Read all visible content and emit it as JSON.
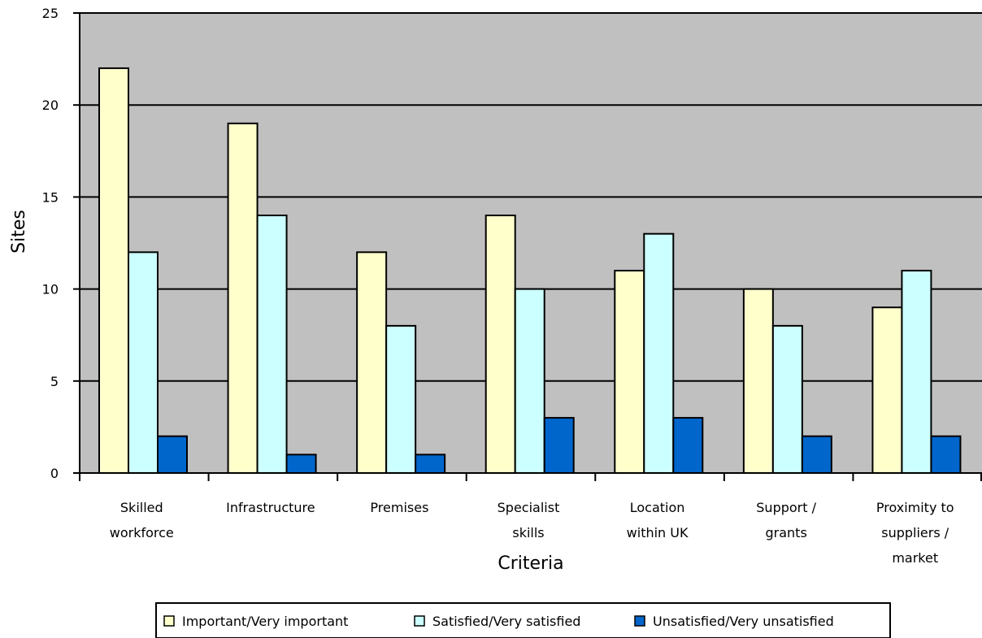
{
  "chart_data": {
    "type": "bar",
    "xlabel": "Criteria",
    "ylabel": "Sites",
    "ylim": [
      0,
      25
    ],
    "yticks": [
      0,
      5,
      10,
      15,
      20,
      25
    ],
    "grid": true,
    "legend_position": "bottom",
    "categories": [
      [
        "Skilled",
        "workforce"
      ],
      [
        "Infrastructure"
      ],
      [
        "Premises"
      ],
      [
        "Specialist",
        "skills"
      ],
      [
        "Location",
        "within UK"
      ],
      [
        "Support /",
        "grants"
      ],
      [
        "Proximity to",
        "suppliers /",
        "market"
      ]
    ],
    "series": [
      {
        "name": "Important/Very important",
        "color": "#ffffcc",
        "values": [
          22,
          19,
          12,
          14,
          11,
          10,
          9
        ]
      },
      {
        "name": "Satisfied/Very satisfied",
        "color": "#ccffff",
        "values": [
          12,
          14,
          8,
          10,
          13,
          8,
          11
        ]
      },
      {
        "name": "Unsatisfied/Very unsatisfied",
        "color": "#0066cc",
        "values": [
          2,
          1,
          1,
          3,
          3,
          2,
          2
        ]
      }
    ],
    "plot_background": "#c0c0c0"
  }
}
